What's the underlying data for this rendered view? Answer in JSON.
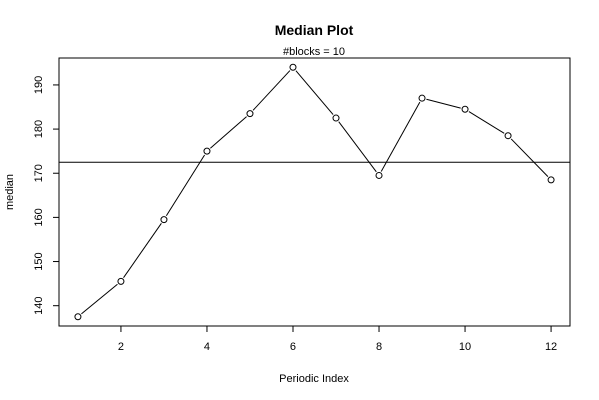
{
  "chart_data": {
    "type": "line",
    "title": "Median Plot",
    "subtitle": "#blocks =  10",
    "xlabel": "Periodic Index",
    "ylabel": "median",
    "x": [
      1,
      2,
      3,
      4,
      5,
      6,
      7,
      8,
      9,
      10,
      11,
      12
    ],
    "series": [
      {
        "values": [
          137.5,
          145.5,
          159.5,
          175,
          183.5,
          194,
          182.5,
          169.5,
          187,
          184.5,
          178.5,
          168.5
        ]
      }
    ],
    "reference_line": {
      "y": 172.5
    },
    "xlim": [
      0.56,
      12.44
    ],
    "ylim": [
      135.4,
      196.1
    ],
    "xticks": [
      2,
      4,
      6,
      8,
      10,
      12
    ],
    "yticks": [
      140,
      150,
      160,
      170,
      180,
      190
    ],
    "grid": false,
    "marker": "open-circle",
    "colors": {
      "line": "#000000",
      "reference": "#000000",
      "background": "#ffffff"
    }
  }
}
